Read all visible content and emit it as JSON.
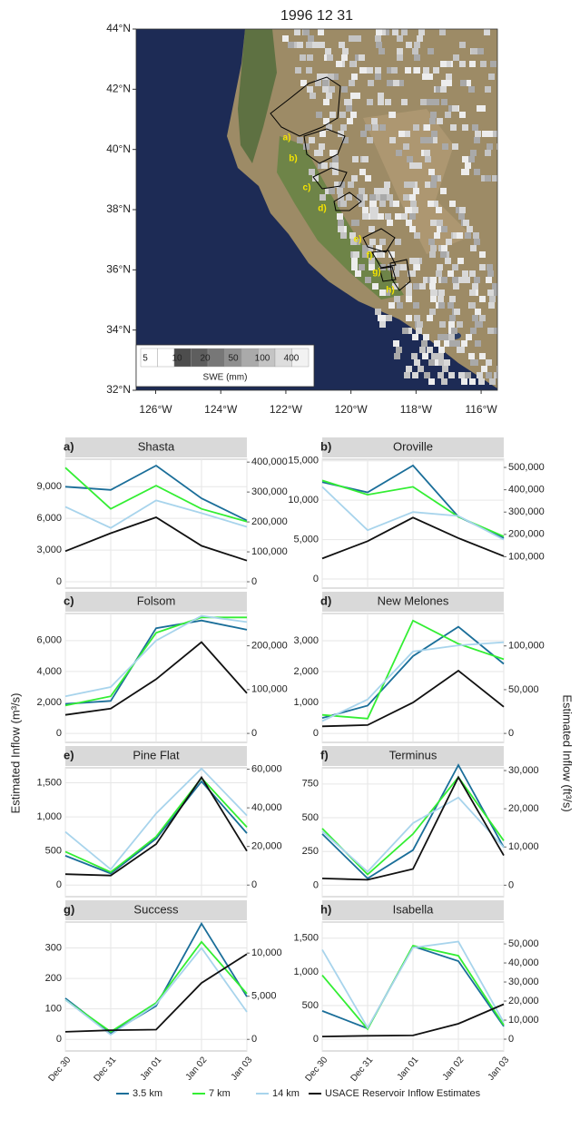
{
  "figure": {
    "ylabel": "Estimated Inflow (m³/s)",
    "y2label": "Estimated Inflow (ft³/s)"
  },
  "chart_data": [
    {
      "type": "map",
      "title": "1996 12 31",
      "xlim": [
        -126.6,
        -115.5
      ],
      "ylim": [
        32,
        44
      ],
      "xticks": [
        {
          "value": -126,
          "label": "126°W"
        },
        {
          "value": -124,
          "label": "124°W"
        },
        {
          "value": -122,
          "label": "122°W"
        },
        {
          "value": -120,
          "label": "120°W"
        },
        {
          "value": -118,
          "label": "118°W"
        },
        {
          "value": -116,
          "label": "116°W"
        }
      ],
      "yticks": [
        {
          "value": 32,
          "label": "32°N"
        },
        {
          "value": 34,
          "label": "34°N"
        },
        {
          "value": 36,
          "label": "36°N"
        },
        {
          "value": 38,
          "label": "38°N"
        },
        {
          "value": 40,
          "label": "40°N"
        },
        {
          "value": 42,
          "label": "42°N"
        },
        {
          "value": 44,
          "label": "44°N"
        }
      ],
      "annotations": [
        "a)",
        "b)",
        "c)",
        "d)",
        "e)",
        "f)",
        "g)",
        "h)"
      ],
      "colorbar": {
        "label": "SWE (mm)",
        "ticks": [
          5,
          10,
          20,
          50,
          100,
          400
        ]
      }
    },
    {
      "type": "line",
      "panel_label": "a)",
      "title": "Shasta",
      "categories": [
        "Dec 30",
        "Dec 31",
        "Jan 01",
        "Jan 02",
        "Jan 03"
      ],
      "ylim": [
        -600,
        11600
      ],
      "yticks": [
        0,
        {
          "value": 3000,
          "label": "3,000"
        },
        {
          "value": 6000,
          "label": "6,000"
        },
        {
          "value": 9000,
          "label": "9,000"
        }
      ],
      "y2lim": [
        -21189,
        409650
      ],
      "y2ticks": [
        0,
        {
          "value": 100000,
          "label": "100,000"
        },
        {
          "value": 200000,
          "label": "200,000"
        },
        {
          "value": 300000,
          "label": "300,000"
        },
        {
          "value": 400000,
          "label": "400,000"
        }
      ],
      "series": [
        {
          "name": "3.5 km",
          "color": "#1a6e99",
          "values": [
            9000,
            8700,
            11000,
            7900,
            5800
          ]
        },
        {
          "name": "7 km",
          "color": "#33ee33",
          "values": [
            10800,
            6900,
            9100,
            6900,
            5700
          ]
        },
        {
          "name": "14 km",
          "color": "#a8d4ec",
          "values": [
            7100,
            5100,
            7700,
            6500,
            5200
          ]
        },
        {
          "name": "USACE Reservoir Inflow Estimates",
          "color": "#111111",
          "values": [
            2900,
            4600,
            6100,
            3400,
            2000
          ]
        }
      ]
    },
    {
      "type": "line",
      "panel_label": "b)",
      "title": "Oroville",
      "categories": [
        "Dec 30",
        "Dec 31",
        "Jan 01",
        "Jan 02",
        "Jan 03"
      ],
      "ylim": [
        -1150,
        15200
      ],
      "yticks": [
        0,
        {
          "value": 5000,
          "label": "5,000"
        },
        {
          "value": 10000,
          "label": "10,000"
        },
        {
          "value": 15000,
          "label": "15,000"
        }
      ],
      "y2lim": [
        -40612,
        536783
      ],
      "y2ticks": [
        {
          "value": 100000,
          "label": "100,000"
        },
        {
          "value": 200000,
          "label": "200,000"
        },
        {
          "value": 300000,
          "label": "300,000"
        },
        {
          "value": 400000,
          "label": "400,000"
        },
        {
          "value": 500000,
          "label": "500,000"
        }
      ],
      "series": [
        {
          "name": "3.5 km",
          "color": "#1a6e99",
          "values": [
            12300,
            11000,
            14400,
            7900,
            5200
          ]
        },
        {
          "name": "7 km",
          "color": "#33ee33",
          "values": [
            12500,
            10700,
            11700,
            7900,
            5400
          ]
        },
        {
          "name": "14 km",
          "color": "#a8d4ec",
          "values": [
            11700,
            6200,
            8500,
            8000,
            5000
          ]
        },
        {
          "name": "USACE Reservoir Inflow Estimates",
          "color": "#111111",
          "values": [
            2600,
            4800,
            7800,
            5200,
            2900
          ]
        }
      ]
    },
    {
      "type": "line",
      "panel_label": "c)",
      "title": "Folsom",
      "categories": [
        "Dec 30",
        "Dec 31",
        "Jan 01",
        "Jan 02",
        "Jan 03"
      ],
      "ylim": [
        -580,
        7750
      ],
      "yticks": [
        0,
        {
          "value": 2000,
          "label": "2,000"
        },
        {
          "value": 4000,
          "label": "4,000"
        },
        {
          "value": 6000,
          "label": "6,000"
        }
      ],
      "y2lim": [
        -20483,
        273689
      ],
      "y2ticks": [
        0,
        {
          "value": 100000,
          "label": "100,000"
        },
        {
          "value": 200000,
          "label": "200,000"
        }
      ],
      "series": [
        {
          "name": "3.5 km",
          "color": "#1a6e99",
          "values": [
            1900,
            2100,
            6800,
            7300,
            6700
          ]
        },
        {
          "name": "7 km",
          "color": "#33ee33",
          "values": [
            1800,
            2400,
            6500,
            7500,
            7500
          ]
        },
        {
          "name": "14 km",
          "color": "#a8d4ec",
          "values": [
            2400,
            3000,
            6000,
            7600,
            7200
          ]
        },
        {
          "name": "USACE Reservoir Inflow Estimates",
          "color": "#111111",
          "values": [
            1200,
            1600,
            3500,
            5900,
            2600
          ]
        }
      ]
    },
    {
      "type": "line",
      "panel_label": "d)",
      "title": "New Melones",
      "categories": [
        "Dec 30",
        "Dec 31",
        "Jan 01",
        "Jan 02",
        "Jan 03"
      ],
      "ylim": [
        -290,
        3880
      ],
      "yticks": [
        0,
        {
          "value": 1000,
          "label": "1,000"
        },
        {
          "value": 2000,
          "label": "2,000"
        },
        {
          "value": 3000,
          "label": "3,000"
        }
      ],
      "y2lim": [
        -10241,
        137021
      ],
      "y2ticks": [
        0,
        {
          "value": 50000,
          "label": "50,000"
        },
        {
          "value": 100000,
          "label": "100,000"
        }
      ],
      "series": [
        {
          "name": "3.5 km",
          "color": "#1a6e99",
          "values": [
            500,
            900,
            2500,
            3450,
            2250
          ]
        },
        {
          "name": "7 km",
          "color": "#33ee33",
          "values": [
            600,
            480,
            3650,
            2900,
            2400
          ]
        },
        {
          "name": "14 km",
          "color": "#a8d4ec",
          "values": [
            400,
            1100,
            2650,
            2850,
            2950
          ]
        },
        {
          "name": "USACE Reservoir Inflow Estimates",
          "color": "#111111",
          "values": [
            230,
            270,
            1000,
            2030,
            860
          ]
        }
      ]
    },
    {
      "type": "line",
      "panel_label": "e)",
      "title": "Pine Flat",
      "categories": [
        "Dec 30",
        "Dec 31",
        "Jan 01",
        "Jan 02",
        "Jan 03"
      ],
      "ylim": [
        -170,
        1720
      ],
      "yticks": [
        0,
        500,
        {
          "value": 1000,
          "label": "1,000"
        },
        {
          "value": 1500,
          "label": "1,500"
        }
      ],
      "y2lim": [
        -6004,
        60741
      ],
      "y2ticks": [
        0,
        {
          "value": 20000,
          "label": "20,000"
        },
        {
          "value": 40000,
          "label": "40,000"
        },
        {
          "value": 60000,
          "label": "60,000"
        }
      ],
      "series": [
        {
          "name": "3.5 km",
          "color": "#1a6e99",
          "values": [
            430,
            170,
            680,
            1520,
            760
          ]
        },
        {
          "name": "7 km",
          "color": "#33ee33",
          "values": [
            490,
            190,
            710,
            1570,
            850
          ]
        },
        {
          "name": "14 km",
          "color": "#a8d4ec",
          "values": [
            780,
            230,
            1050,
            1710,
            1020
          ]
        },
        {
          "name": "USACE Reservoir Inflow Estimates",
          "color": "#111111",
          "values": [
            160,
            140,
            600,
            1580,
            500
          ]
        }
      ]
    },
    {
      "type": "line",
      "panel_label": "f)",
      "title": "Terminus",
      "categories": [
        "Dec 30",
        "Dec 31",
        "Jan 01",
        "Jan 02",
        "Jan 03"
      ],
      "ylim": [
        -85,
        870
      ],
      "yticks": [
        0,
        250,
        500,
        750
      ],
      "y2lim": [
        -3002,
        30724
      ],
      "y2ticks": [
        0,
        {
          "value": 10000,
          "label": "10,000"
        },
        {
          "value": 20000,
          "label": "20,000"
        },
        {
          "value": 30000,
          "label": "30,000"
        }
      ],
      "series": [
        {
          "name": "3.5 km",
          "color": "#1a6e99",
          "values": [
            380,
            50,
            260,
            890,
            280
          ]
        },
        {
          "name": "7 km",
          "color": "#33ee33",
          "values": [
            420,
            80,
            380,
            800,
            330
          ]
        },
        {
          "name": "14 km",
          "color": "#a8d4ec",
          "values": [
            400,
            100,
            460,
            650,
            280
          ]
        },
        {
          "name": "USACE Reservoir Inflow Estimates",
          "color": "#111111",
          "values": [
            50,
            40,
            120,
            800,
            220
          ]
        }
      ]
    },
    {
      "type": "line",
      "panel_label": "g)",
      "title": "Success",
      "categories": [
        "Dec 30",
        "Dec 31",
        "Jan 01",
        "Jan 02",
        "Jan 03"
      ],
      "ylim": [
        -38,
        385
      ],
      "yticks": [
        0,
        100,
        200,
        300
      ],
      "y2lim": [
        -1342,
        13596
      ],
      "y2ticks": [
        0,
        {
          "value": 5000,
          "label": "5,000"
        },
        {
          "value": 10000,
          "label": "10,000"
        }
      ],
      "series": [
        {
          "name": "3.5 km",
          "color": "#1a6e99",
          "values": [
            135,
            20,
            110,
            380,
            140
          ]
        },
        {
          "name": "7 km",
          "color": "#33ee33",
          "values": [
            130,
            25,
            120,
            320,
            150
          ]
        },
        {
          "name": "14 km",
          "color": "#a8d4ec",
          "values": [
            130,
            15,
            115,
            300,
            90
          ]
        },
        {
          "name": "USACE Reservoir Inflow Estimates",
          "color": "#111111",
          "values": [
            25,
            30,
            32,
            185,
            280
          ]
        }
      ]
    },
    {
      "type": "line",
      "panel_label": "h)",
      "title": "Isabella",
      "categories": [
        "Dec 30",
        "Dec 31",
        "Jan 01",
        "Jan 02",
        "Jan 03"
      ],
      "ylim": [
        -175,
        1740
      ],
      "yticks": [
        0,
        500,
        {
          "value": 1000,
          "label": "1,000"
        },
        {
          "value": 1500,
          "label": "1,500"
        }
      ],
      "y2lim": [
        -6180,
        61448
      ],
      "y2ticks": [
        0,
        {
          "value": 10000,
          "label": "10,000"
        },
        {
          "value": 20000,
          "label": "20,000"
        },
        {
          "value": 30000,
          "label": "30,000"
        },
        {
          "value": 40000,
          "label": "40,000"
        },
        {
          "value": 50000,
          "label": "50,000"
        }
      ],
      "series": [
        {
          "name": "3.5 km",
          "color": "#1a6e99",
          "values": [
            420,
            160,
            1380,
            1160,
            190
          ]
        },
        {
          "name": "7 km",
          "color": "#33ee33",
          "values": [
            950,
            150,
            1390,
            1240,
            210
          ]
        },
        {
          "name": "14 km",
          "color": "#a8d4ec",
          "values": [
            1330,
            170,
            1360,
            1450,
            250
          ]
        },
        {
          "name": "USACE Reservoir Inflow Estimates",
          "color": "#111111",
          "values": [
            40,
            50,
            55,
            230,
            520
          ]
        }
      ]
    }
  ]
}
